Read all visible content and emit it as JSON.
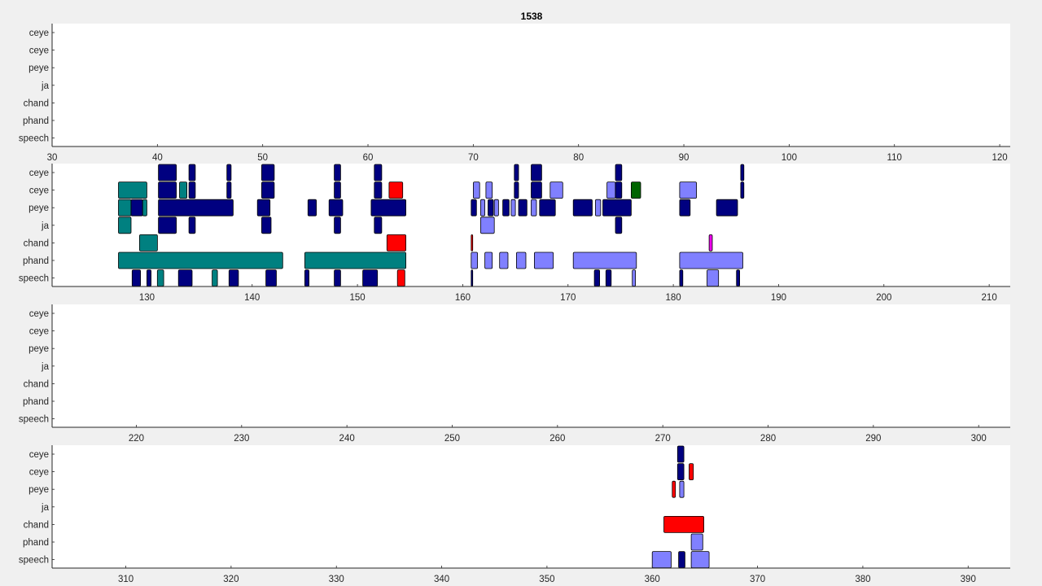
{
  "chart_data": {
    "type": "timeline",
    "title": "1538",
    "colors": {
      "navy": "#000080",
      "teal": "#008080",
      "lavender": "#8080ff",
      "red": "#ff0000",
      "darkgreen": "#006400",
      "magenta": "#ee00ee"
    },
    "panels": [
      {
        "rows": [
          "ceye",
          "ceye",
          "peye",
          "ja",
          "chand",
          "phand",
          "speech"
        ],
        "xlim": [
          30,
          121
        ],
        "xticks": [
          30,
          40,
          50,
          60,
          70,
          80,
          90,
          100,
          110,
          120
        ],
        "events": []
      },
      {
        "rows": [
          "ceye",
          "ceye",
          "peye",
          "ja",
          "chand",
          "phand",
          "speech"
        ],
        "xlim": [
          121,
          212
        ],
        "xticks": [
          130,
          140,
          150,
          160,
          170,
          180,
          190,
          200,
          210
        ],
        "events": [
          {
            "row": 0,
            "start": 131.1,
            "end": 132.8,
            "color": "navy"
          },
          {
            "row": 0,
            "start": 134.0,
            "end": 134.6,
            "color": "navy"
          },
          {
            "row": 0,
            "start": 137.6,
            "end": 138.0,
            "color": "navy"
          },
          {
            "row": 0,
            "start": 140.9,
            "end": 142.1,
            "color": "navy"
          },
          {
            "row": 0,
            "start": 147.8,
            "end": 148.4,
            "color": "navy"
          },
          {
            "row": 0,
            "start": 151.6,
            "end": 152.3,
            "color": "navy"
          },
          {
            "row": 0,
            "start": 164.9,
            "end": 165.3,
            "color": "navy"
          },
          {
            "row": 0,
            "start": 166.5,
            "end": 167.5,
            "color": "navy"
          },
          {
            "row": 0,
            "start": 174.5,
            "end": 175.1,
            "color": "navy"
          },
          {
            "row": 0,
            "start": 186.4,
            "end": 186.7,
            "color": "navy"
          },
          {
            "row": 1,
            "start": 127.3,
            "end": 130.0,
            "color": "teal"
          },
          {
            "row": 1,
            "start": 131.1,
            "end": 132.8,
            "color": "navy"
          },
          {
            "row": 1,
            "start": 133.1,
            "end": 133.8,
            "color": "teal"
          },
          {
            "row": 1,
            "start": 134.0,
            "end": 134.6,
            "color": "navy"
          },
          {
            "row": 1,
            "start": 137.6,
            "end": 138.0,
            "color": "navy"
          },
          {
            "row": 1,
            "start": 140.9,
            "end": 142.1,
            "color": "navy"
          },
          {
            "row": 1,
            "start": 147.8,
            "end": 148.4,
            "color": "navy"
          },
          {
            "row": 1,
            "start": 151.6,
            "end": 152.3,
            "color": "navy"
          },
          {
            "row": 1,
            "start": 153.0,
            "end": 154.3,
            "color": "red"
          },
          {
            "row": 1,
            "start": 161.0,
            "end": 161.6,
            "color": "lavender"
          },
          {
            "row": 1,
            "start": 162.2,
            "end": 162.8,
            "color": "lavender"
          },
          {
            "row": 1,
            "start": 164.9,
            "end": 165.3,
            "color": "navy"
          },
          {
            "row": 1,
            "start": 166.5,
            "end": 167.5,
            "color": "navy"
          },
          {
            "row": 1,
            "start": 168.3,
            "end": 169.5,
            "color": "lavender"
          },
          {
            "row": 1,
            "start": 173.7,
            "end": 174.5,
            "color": "lavender"
          },
          {
            "row": 1,
            "start": 174.5,
            "end": 175.1,
            "color": "navy"
          },
          {
            "row": 1,
            "start": 176.0,
            "end": 176.9,
            "color": "darkgreen"
          },
          {
            "row": 1,
            "start": 180.6,
            "end": 182.2,
            "color": "lavender"
          },
          {
            "row": 1,
            "start": 186.4,
            "end": 186.7,
            "color": "navy"
          },
          {
            "row": 2,
            "start": 127.3,
            "end": 128.5,
            "color": "teal"
          },
          {
            "row": 2,
            "start": 128.5,
            "end": 129.6,
            "color": "navy"
          },
          {
            "row": 2,
            "start": 129.6,
            "end": 130.0,
            "color": "teal"
          },
          {
            "row": 2,
            "start": 131.1,
            "end": 138.2,
            "color": "navy"
          },
          {
            "row": 2,
            "start": 140.5,
            "end": 141.7,
            "color": "navy"
          },
          {
            "row": 2,
            "start": 145.3,
            "end": 146.1,
            "color": "navy"
          },
          {
            "row": 2,
            "start": 147.3,
            "end": 148.6,
            "color": "navy"
          },
          {
            "row": 2,
            "start": 151.3,
            "end": 154.6,
            "color": "navy"
          },
          {
            "row": 2,
            "start": 160.8,
            "end": 161.3,
            "color": "navy"
          },
          {
            "row": 2,
            "start": 161.7,
            "end": 162.1,
            "color": "lavender"
          },
          {
            "row": 2,
            "start": 162.4,
            "end": 162.9,
            "color": "navy"
          },
          {
            "row": 2,
            "start": 163.0,
            "end": 163.4,
            "color": "lavender"
          },
          {
            "row": 2,
            "start": 163.8,
            "end": 164.4,
            "color": "navy"
          },
          {
            "row": 2,
            "start": 164.6,
            "end": 165.0,
            "color": "lavender"
          },
          {
            "row": 2,
            "start": 165.3,
            "end": 166.1,
            "color": "navy"
          },
          {
            "row": 2,
            "start": 166.5,
            "end": 167.0,
            "color": "lavender"
          },
          {
            "row": 2,
            "start": 167.3,
            "end": 168.8,
            "color": "navy"
          },
          {
            "row": 2,
            "start": 170.5,
            "end": 172.3,
            "color": "navy"
          },
          {
            "row": 2,
            "start": 172.6,
            "end": 173.1,
            "color": "lavender"
          },
          {
            "row": 2,
            "start": 173.3,
            "end": 176.0,
            "color": "navy"
          },
          {
            "row": 2,
            "start": 180.6,
            "end": 181.6,
            "color": "navy"
          },
          {
            "row": 2,
            "start": 184.1,
            "end": 186.1,
            "color": "navy"
          },
          {
            "row": 3,
            "start": 127.3,
            "end": 128.5,
            "color": "teal"
          },
          {
            "row": 3,
            "start": 131.1,
            "end": 132.8,
            "color": "navy"
          },
          {
            "row": 3,
            "start": 134.0,
            "end": 134.6,
            "color": "navy"
          },
          {
            "row": 3,
            "start": 140.9,
            "end": 141.8,
            "color": "navy"
          },
          {
            "row": 3,
            "start": 147.8,
            "end": 148.4,
            "color": "navy"
          },
          {
            "row": 3,
            "start": 151.6,
            "end": 152.3,
            "color": "navy"
          },
          {
            "row": 3,
            "start": 161.7,
            "end": 163.0,
            "color": "lavender"
          },
          {
            "row": 3,
            "start": 174.5,
            "end": 175.1,
            "color": "navy"
          },
          {
            "row": 4,
            "start": 129.3,
            "end": 131.0,
            "color": "teal"
          },
          {
            "row": 4,
            "start": 152.8,
            "end": 154.6,
            "color": "red"
          },
          {
            "row": 4,
            "start": 160.8,
            "end": 160.95,
            "color": "red"
          },
          {
            "row": 4,
            "start": 183.4,
            "end": 183.7,
            "color": "magenta"
          },
          {
            "row": 5,
            "start": 127.3,
            "end": 142.9,
            "color": "teal"
          },
          {
            "row": 5,
            "start": 145.0,
            "end": 154.6,
            "color": "teal"
          },
          {
            "row": 5,
            "start": 160.8,
            "end": 161.4,
            "color": "lavender"
          },
          {
            "row": 5,
            "start": 162.1,
            "end": 162.8,
            "color": "lavender"
          },
          {
            "row": 5,
            "start": 163.5,
            "end": 164.3,
            "color": "lavender"
          },
          {
            "row": 5,
            "start": 165.1,
            "end": 166.0,
            "color": "lavender"
          },
          {
            "row": 5,
            "start": 166.8,
            "end": 168.6,
            "color": "lavender"
          },
          {
            "row": 5,
            "start": 170.5,
            "end": 176.5,
            "color": "lavender"
          },
          {
            "row": 5,
            "start": 180.6,
            "end": 186.6,
            "color": "lavender"
          },
          {
            "row": 6,
            "start": 128.6,
            "end": 129.4,
            "color": "navy"
          },
          {
            "row": 6,
            "start": 130.0,
            "end": 130.4,
            "color": "navy"
          },
          {
            "row": 6,
            "start": 131.0,
            "end": 131.6,
            "color": "teal"
          },
          {
            "row": 6,
            "start": 133.0,
            "end": 134.3,
            "color": "navy"
          },
          {
            "row": 6,
            "start": 136.2,
            "end": 136.7,
            "color": "teal"
          },
          {
            "row": 6,
            "start": 137.8,
            "end": 138.7,
            "color": "navy"
          },
          {
            "row": 6,
            "start": 141.3,
            "end": 142.3,
            "color": "navy"
          },
          {
            "row": 6,
            "start": 145.0,
            "end": 145.4,
            "color": "navy"
          },
          {
            "row": 6,
            "start": 147.8,
            "end": 148.4,
            "color": "navy"
          },
          {
            "row": 6,
            "start": 150.5,
            "end": 151.9,
            "color": "navy"
          },
          {
            "row": 6,
            "start": 153.8,
            "end": 154.5,
            "color": "red"
          },
          {
            "row": 6,
            "start": 160.8,
            "end": 160.95,
            "color": "navy"
          },
          {
            "row": 6,
            "start": 172.5,
            "end": 173.0,
            "color": "navy"
          },
          {
            "row": 6,
            "start": 173.6,
            "end": 174.1,
            "color": "navy"
          },
          {
            "row": 6,
            "start": 176.1,
            "end": 176.4,
            "color": "lavender"
          },
          {
            "row": 6,
            "start": 180.6,
            "end": 180.9,
            "color": "navy"
          },
          {
            "row": 6,
            "start": 183.2,
            "end": 184.3,
            "color": "lavender"
          },
          {
            "row": 6,
            "start": 186.0,
            "end": 186.3,
            "color": "navy"
          }
        ]
      },
      {
        "rows": [
          "ceye",
          "ceye",
          "peye",
          "ja",
          "chand",
          "phand",
          "speech"
        ],
        "xlim": [
          212,
          303
        ],
        "xticks": [
          220,
          230,
          240,
          250,
          260,
          270,
          280,
          290,
          300
        ],
        "events": []
      },
      {
        "rows": [
          "ceye",
          "ceye",
          "peye",
          "ja",
          "chand",
          "phand",
          "speech"
        ],
        "xlim": [
          303,
          394
        ],
        "xticks": [
          310,
          320,
          330,
          340,
          350,
          360,
          370,
          380,
          390
        ],
        "events": [
          {
            "row": 0,
            "start": 362.4,
            "end": 363.0,
            "color": "navy"
          },
          {
            "row": 1,
            "start": 362.4,
            "end": 363.0,
            "color": "navy"
          },
          {
            "row": 1,
            "start": 363.5,
            "end": 363.9,
            "color": "red"
          },
          {
            "row": 2,
            "start": 361.9,
            "end": 362.2,
            "color": "red"
          },
          {
            "row": 2,
            "start": 362.6,
            "end": 363.0,
            "color": "lavender"
          },
          {
            "row": 4,
            "start": 361.1,
            "end": 364.9,
            "color": "red"
          },
          {
            "row": 5,
            "start": 363.7,
            "end": 364.8,
            "color": "lavender"
          },
          {
            "row": 6,
            "start": 360.0,
            "end": 361.8,
            "color": "lavender"
          },
          {
            "row": 6,
            "start": 362.5,
            "end": 363.1,
            "color": "navy"
          },
          {
            "row": 6,
            "start": 363.7,
            "end": 365.4,
            "color": "lavender"
          }
        ]
      }
    ]
  }
}
